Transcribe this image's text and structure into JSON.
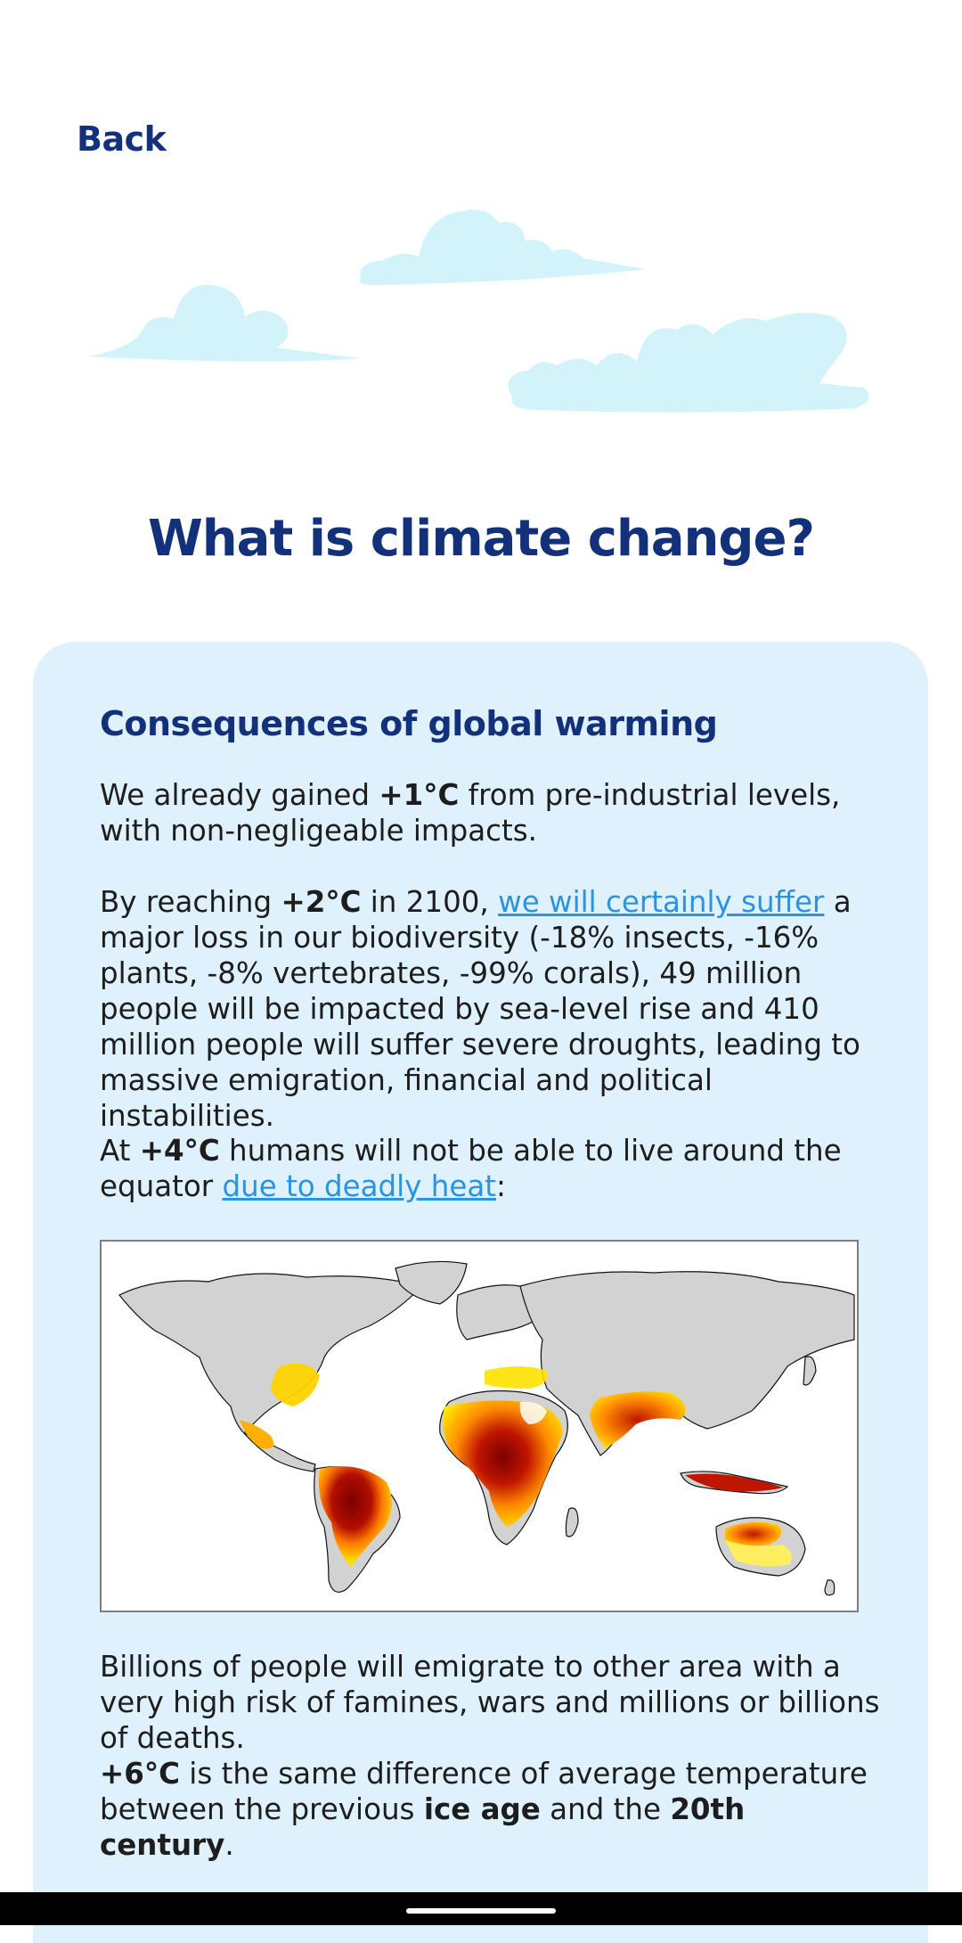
{
  "header": {
    "back_label": "Back"
  },
  "page": {
    "title": "What is climate change?"
  },
  "card": {
    "heading": "Consequences of global warming",
    "p1": {
      "a": "We already gained ",
      "b": "+1°C",
      "c": " from pre-industrial levels, with non-negligeable impacts."
    },
    "p2": {
      "a": "By reaching ",
      "b": "+2°C",
      "c": " in 2100, ",
      "link": "we will certainly suffer",
      "d": " a major loss in our biodiversity (-18% insects, -16% plants, -8% vertebrates, -99% corals), 49 million people will be impacted by sea-level rise and 410 million people will suffer severe droughts, leading to massive emigration, financial and political instabilities."
    },
    "p3": {
      "a": "At ",
      "b": "+4°C",
      "c": " humans will not be able to live around the equator ",
      "link": "due to deadly heat",
      "d": ":"
    },
    "p4": "Billions of people will emigrate to other area with a very high risk of famines, wars and millions or billions of deaths.",
    "p5": {
      "a": "+6°C",
      "b": " is the same difference of average temperature between the previous ",
      "c": "ice age",
      "d": " and the ",
      "e": "20th century",
      "f": "."
    }
  },
  "colors": {
    "title": "#13307a",
    "card_bg": "#dff1fc",
    "link": "#2a94e4",
    "cloud": "#d3f3fb",
    "heat_low": "#ffe100",
    "heat_mid": "#ff8a00",
    "heat_high": "#d61a00",
    "heat_max": "#7a0000",
    "land": "#d2d2d2"
  }
}
